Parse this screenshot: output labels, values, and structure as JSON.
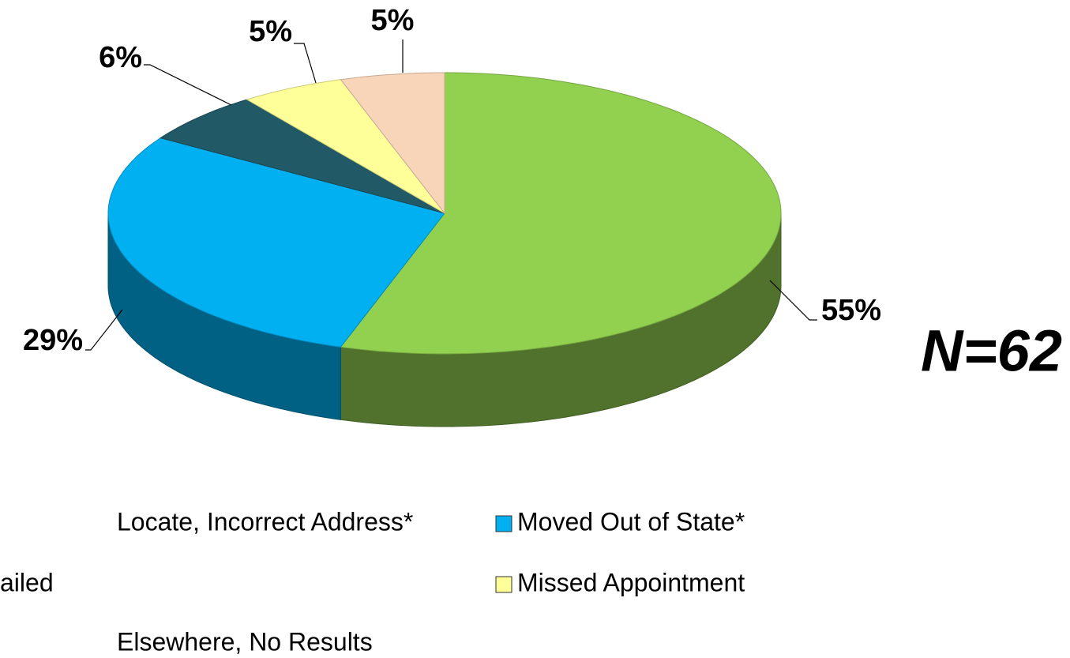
{
  "chart_data": {
    "type": "pie",
    "categories": [
      "Locate, Incorrect Address*",
      "Moved Out of State*",
      "ailed",
      "Missed Appointment",
      "Elsewhere, No Results"
    ],
    "values": [
      55,
      29,
      6,
      5,
      5
    ],
    "value_labels": [
      "55%",
      "29%",
      "6%",
      "5%",
      "5%"
    ],
    "colors": [
      "#92d050",
      "#00b0f0",
      "#215967",
      "#ffff99",
      "#f8d4b8"
    ],
    "annotation": "N=62"
  }
}
